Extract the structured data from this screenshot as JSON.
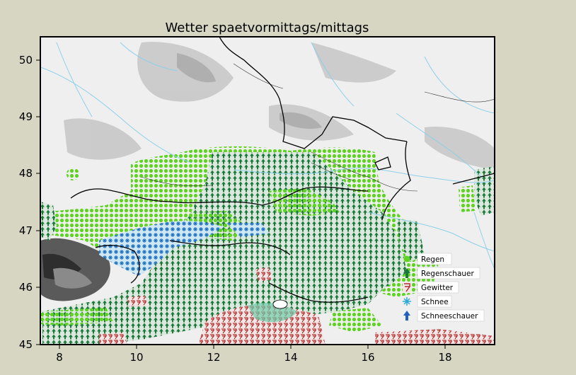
{
  "title": "Wetter spaetvormittags/mittags",
  "axes": {
    "x_ticks": [
      "8",
      "10",
      "12",
      "14",
      "16",
      "18"
    ],
    "y_ticks": [
      "50",
      "49",
      "48",
      "47",
      "46",
      "45"
    ]
  },
  "legend": [
    {
      "label": "Regen",
      "color": "#5fd322",
      "icon": "dot-icon"
    },
    {
      "label": "Regenschauer",
      "color": "#1a7a3c",
      "icon": "tree-shower-icon"
    },
    {
      "label": "Gewitter",
      "color": "#b03030",
      "icon": "lightning-icon"
    },
    {
      "label": "Schnee",
      "color": "#2aa8d8",
      "icon": "snowflake-icon"
    },
    {
      "label": "Schneeschauer",
      "color": "#1e5fc0",
      "icon": "snow-shower-icon"
    }
  ],
  "colors": {
    "background": "#d6d6c2",
    "map_bg": "#efefef",
    "terrain": "#c8c8c8",
    "rain": "#5fd322",
    "shower": "#1a7a3c",
    "thunder": "#b03030",
    "snow": "#2aa8d8",
    "snow_shower": "#1e5fc0",
    "rivers": "#8fd0ea"
  }
}
